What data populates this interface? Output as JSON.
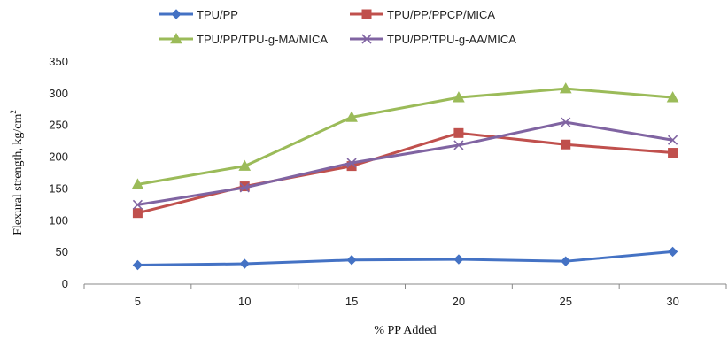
{
  "chart_data": {
    "type": "line",
    "title": "",
    "xlabel": "% PP Added",
    "ylabel": "Flexural strength, kg/cm",
    "ylabel_superscript": "2",
    "categories": [
      "5",
      "10",
      "15",
      "20",
      "25",
      "30"
    ],
    "x": [
      5,
      10,
      15,
      20,
      25,
      30
    ],
    "ylim": [
      0,
      350
    ],
    "yticks": [
      "0",
      "50",
      "100",
      "150",
      "200",
      "250",
      "300",
      "350"
    ],
    "grid": false,
    "legend_position": "top",
    "series": [
      {
        "name": "TPU/PP",
        "color": "#4472C4",
        "marker": "diamond",
        "values": [
          30,
          32,
          38,
          39,
          36,
          51
        ]
      },
      {
        "name": "TPU/PP/PPCP/MICA",
        "color": "#C0504D",
        "marker": "square",
        "values": [
          112,
          154,
          186,
          238,
          220,
          207
        ]
      },
      {
        "name": "TPU/PP/TPU-g-MA/MICA",
        "color": "#9BBB59",
        "marker": "triangle",
        "values": [
          157,
          186,
          263,
          294,
          308,
          294
        ]
      },
      {
        "name": "TPU/PP/TPU-g-AA/MICA",
        "color": "#8064A2",
        "marker": "x",
        "values": [
          125,
          152,
          191,
          219,
          255,
          227
        ]
      }
    ]
  }
}
